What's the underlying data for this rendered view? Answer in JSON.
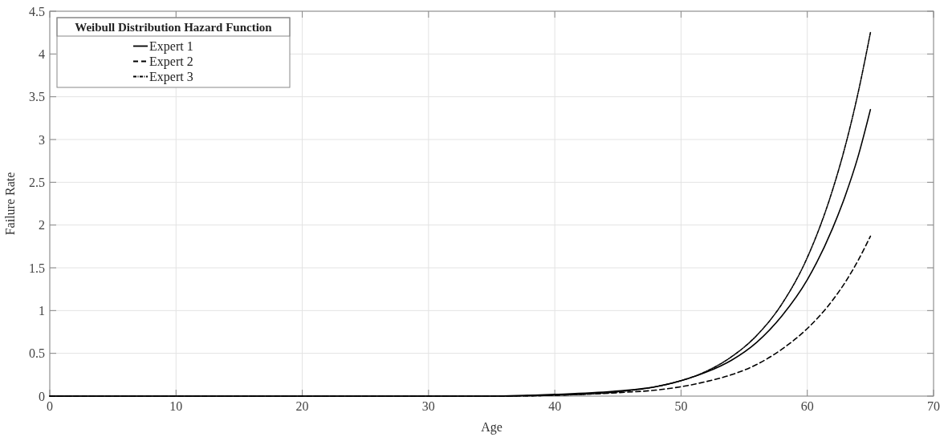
{
  "chart_data": {
    "type": "line",
    "xlabel": "Age",
    "ylabel": "Failure Rate",
    "legend_title": "Weibull Distribution Hazard Function",
    "legend": "top left",
    "grid": true,
    "x": [
      0,
      10,
      20,
      30,
      35,
      40,
      45,
      48,
      50,
      52,
      54,
      56,
      58,
      60,
      62,
      63,
      64,
      65
    ],
    "xlim": [
      0,
      70
    ],
    "xticks": [
      0,
      10,
      20,
      30,
      40,
      50,
      60,
      70
    ],
    "ylim": [
      0,
      4.5
    ],
    "yticks": [
      0,
      0.5,
      1,
      1.5,
      2,
      2.5,
      3,
      3.5,
      4,
      4.5
    ],
    "series": [
      {
        "name": "Expert 1",
        "color": "#000000",
        "line_style": "solid",
        "values": [
          0,
          0,
          0,
          0,
          0,
          0.02,
          0.06,
          0.11,
          0.18,
          0.28,
          0.42,
          0.63,
          0.94,
          1.36,
          1.96,
          2.34,
          2.79,
          3.35
        ]
      },
      {
        "name": "Expert 2",
        "color": "#000000",
        "line_style": "dashed",
        "values": [
          0,
          0,
          0,
          0,
          0,
          0.01,
          0.04,
          0.07,
          0.11,
          0.17,
          0.25,
          0.37,
          0.55,
          0.79,
          1.12,
          1.33,
          1.58,
          1.87
        ]
      },
      {
        "name": "Expert 3",
        "color": "#000000",
        "line_style": "dotted",
        "values": [
          0,
          0,
          0,
          0,
          0,
          0.01,
          0.05,
          0.11,
          0.18,
          0.29,
          0.46,
          0.71,
          1.08,
          1.62,
          2.41,
          2.92,
          3.53,
          4.25
        ]
      }
    ]
  }
}
